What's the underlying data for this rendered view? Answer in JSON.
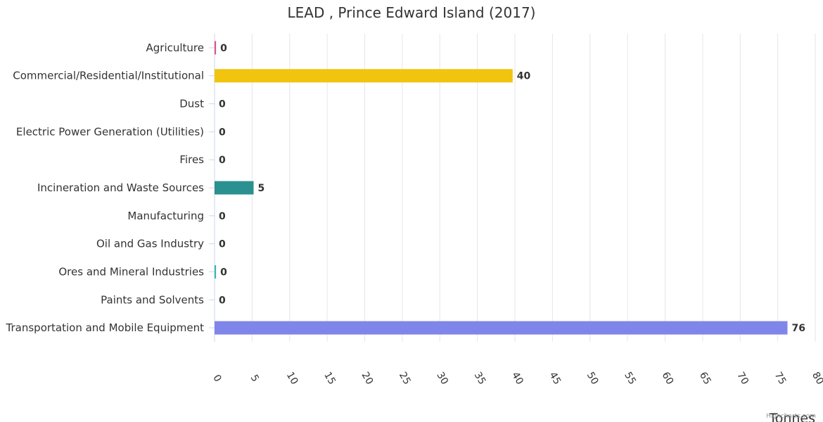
{
  "chart_data": {
    "type": "bar",
    "orientation": "horizontal",
    "title": "LEAD , Prince Edward Island (2017)",
    "xlabel": "",
    "ylabel": "Tonnes",
    "categories": [
      "Agriculture",
      "Commercial/Residential/Institutional",
      "Dust",
      "Electric Power Generation (Utilities)",
      "Fires",
      "Incineration and Waste Sources",
      "Manufacturing",
      "Oil and Gas Industry",
      "Ores and Mineral Industries",
      "Paints and Solvents",
      "Transportation and Mobile Equipment"
    ],
    "values": [
      0.2,
      39.7,
      0,
      0,
      0,
      5.2,
      0,
      0,
      0.2,
      0,
      76.3
    ],
    "data_labels": [
      "0",
      "40",
      "0",
      "0",
      "0",
      "5",
      "0",
      "0",
      "0",
      "0",
      "76"
    ],
    "colors": [
      "#d6558b",
      "#f1c40f",
      "#2c3e50",
      "#6e8b9b",
      "#7f8c8d",
      "#2a9090",
      "#555555",
      "#888888",
      "#37b6b0",
      "#aaaaaa",
      "#8085e9"
    ],
    "ylim": [
      0,
      80
    ],
    "ticks": [
      0,
      5,
      10,
      15,
      20,
      25,
      30,
      35,
      40,
      45,
      50,
      55,
      60,
      65,
      70,
      75,
      80
    ],
    "grid": true,
    "credits": "Highcharts.com"
  }
}
